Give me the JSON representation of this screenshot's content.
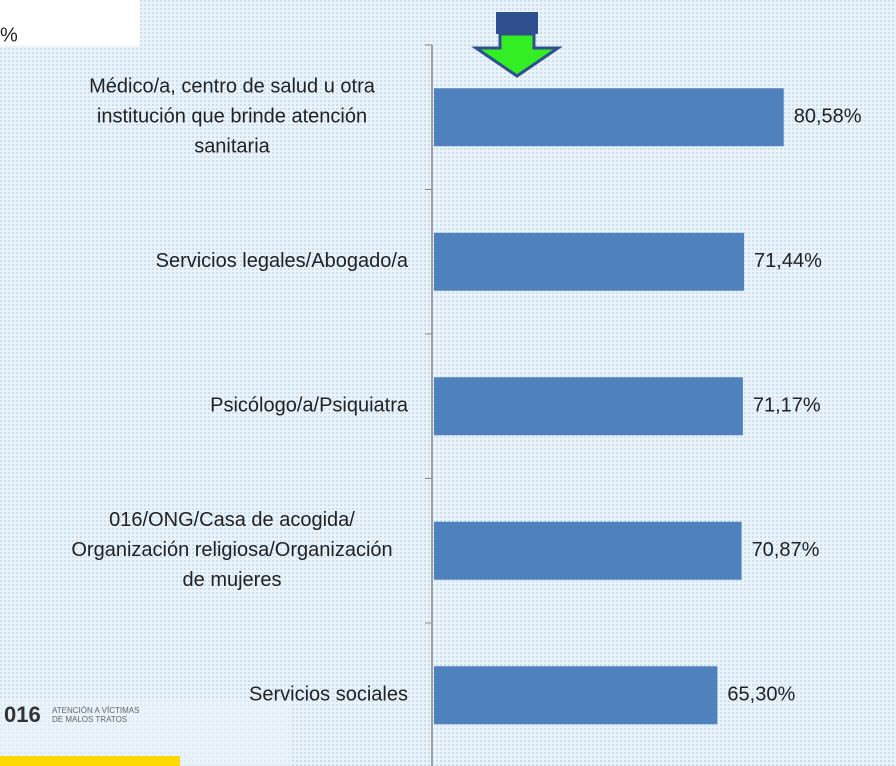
{
  "chart_data": {
    "type": "barh",
    "axis_label": "%",
    "categories": [
      [
        "Médico/a, centro de salud u otra",
        "institución que brinde atención",
        "sanitaria"
      ],
      [
        "Servicios legales/Abogado/a"
      ],
      [
        "Psicólogo/a/Psiquiatra"
      ],
      [
        "016/ONG/Casa de acogida/",
        "Organización religiosa/Organización",
        "de mujeres"
      ],
      [
        "Servicios sociales"
      ]
    ],
    "values": [
      80.58,
      71.44,
      71.17,
      70.87,
      65.3
    ],
    "value_labels": [
      "80,58%",
      "71,44%",
      "71,17%",
      "70,87%",
      "65,30%"
    ],
    "color": "#4f81bd",
    "xlim": [
      0,
      100
    ]
  },
  "logo": {
    "number": "016",
    "lines": [
      "ATENCIÓN A VÍCTIMAS",
      "DE MALOS TRATOS"
    ]
  }
}
